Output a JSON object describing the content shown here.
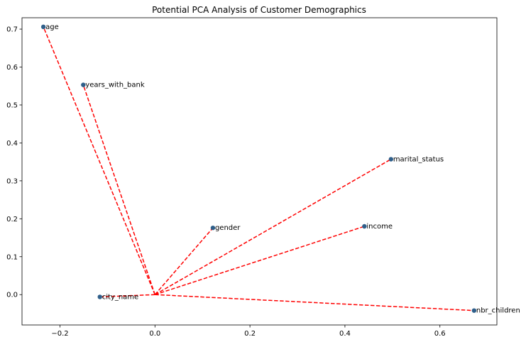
{
  "chart_data": {
    "type": "scatter",
    "title": "Potential PCA Analysis of Customer Demographics",
    "xlabel": "",
    "ylabel": "",
    "xlim": [
      -0.28,
      0.72
    ],
    "ylim": [
      -0.08,
      0.73
    ],
    "xticks": [
      -0.2,
      0.0,
      0.2,
      0.4,
      0.6
    ],
    "xtick_labels": [
      "−0.2",
      "0.0",
      "0.2",
      "0.4",
      "0.6"
    ],
    "yticks": [
      0.0,
      0.1,
      0.2,
      0.3,
      0.4,
      0.5,
      0.6,
      0.7
    ],
    "ytick_labels": [
      "0.0",
      "0.1",
      "0.2",
      "0.3",
      "0.4",
      "0.5",
      "0.6",
      "0.7"
    ],
    "grid": false,
    "origin": [
      0,
      0
    ],
    "points": [
      {
        "label": "age",
        "x": -0.235,
        "y": 0.706
      },
      {
        "label": "years_with_bank",
        "x": -0.151,
        "y": 0.553
      },
      {
        "label": "marital_status",
        "x": 0.497,
        "y": 0.357
      },
      {
        "label": "gender",
        "x": 0.122,
        "y": 0.176
      },
      {
        "label": "income",
        "x": 0.441,
        "y": 0.18
      },
      {
        "label": "city_name",
        "x": -0.116,
        "y": -0.006
      },
      {
        "label": "nbr_children",
        "x": 0.672,
        "y": -0.042
      }
    ],
    "colors": {
      "point": "#2f5f8a",
      "vector": "#ff0000",
      "axes": "#000000"
    }
  }
}
